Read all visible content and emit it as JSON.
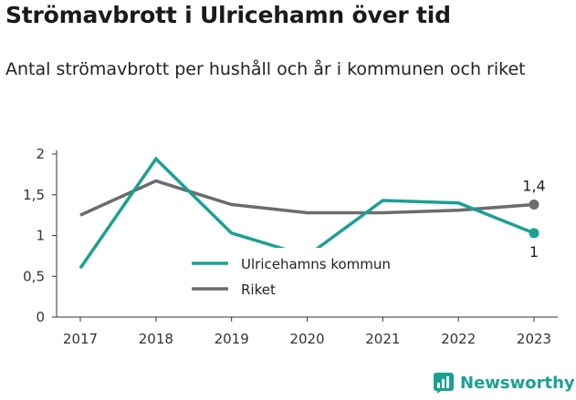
{
  "title": "Strömavbrott i Ulricehamn över tid",
  "subtitle": "Antal strömavbrott per hushåll och år i kommunen och riket",
  "brand": "Newsworthy",
  "chart_data": {
    "type": "line",
    "x": [
      "2017",
      "2018",
      "2019",
      "2020",
      "2021",
      "2022",
      "2023"
    ],
    "yticks": [
      "0",
      "0,5",
      "1",
      "1,5",
      "2"
    ],
    "ylim": [
      0,
      2
    ],
    "grid": false,
    "legend": "center",
    "series": [
      {
        "name": "Ulricehamns kommun",
        "color": "#1aa193",
        "values": [
          0.6,
          1.94,
          1.03,
          0.75,
          1.43,
          1.4,
          1.03
        ],
        "end_label": "1"
      },
      {
        "name": "Riket",
        "color": "#6b6b70",
        "values": [
          1.25,
          1.67,
          1.38,
          1.28,
          1.28,
          1.31,
          1.38
        ],
        "end_label": "1,4"
      }
    ]
  }
}
